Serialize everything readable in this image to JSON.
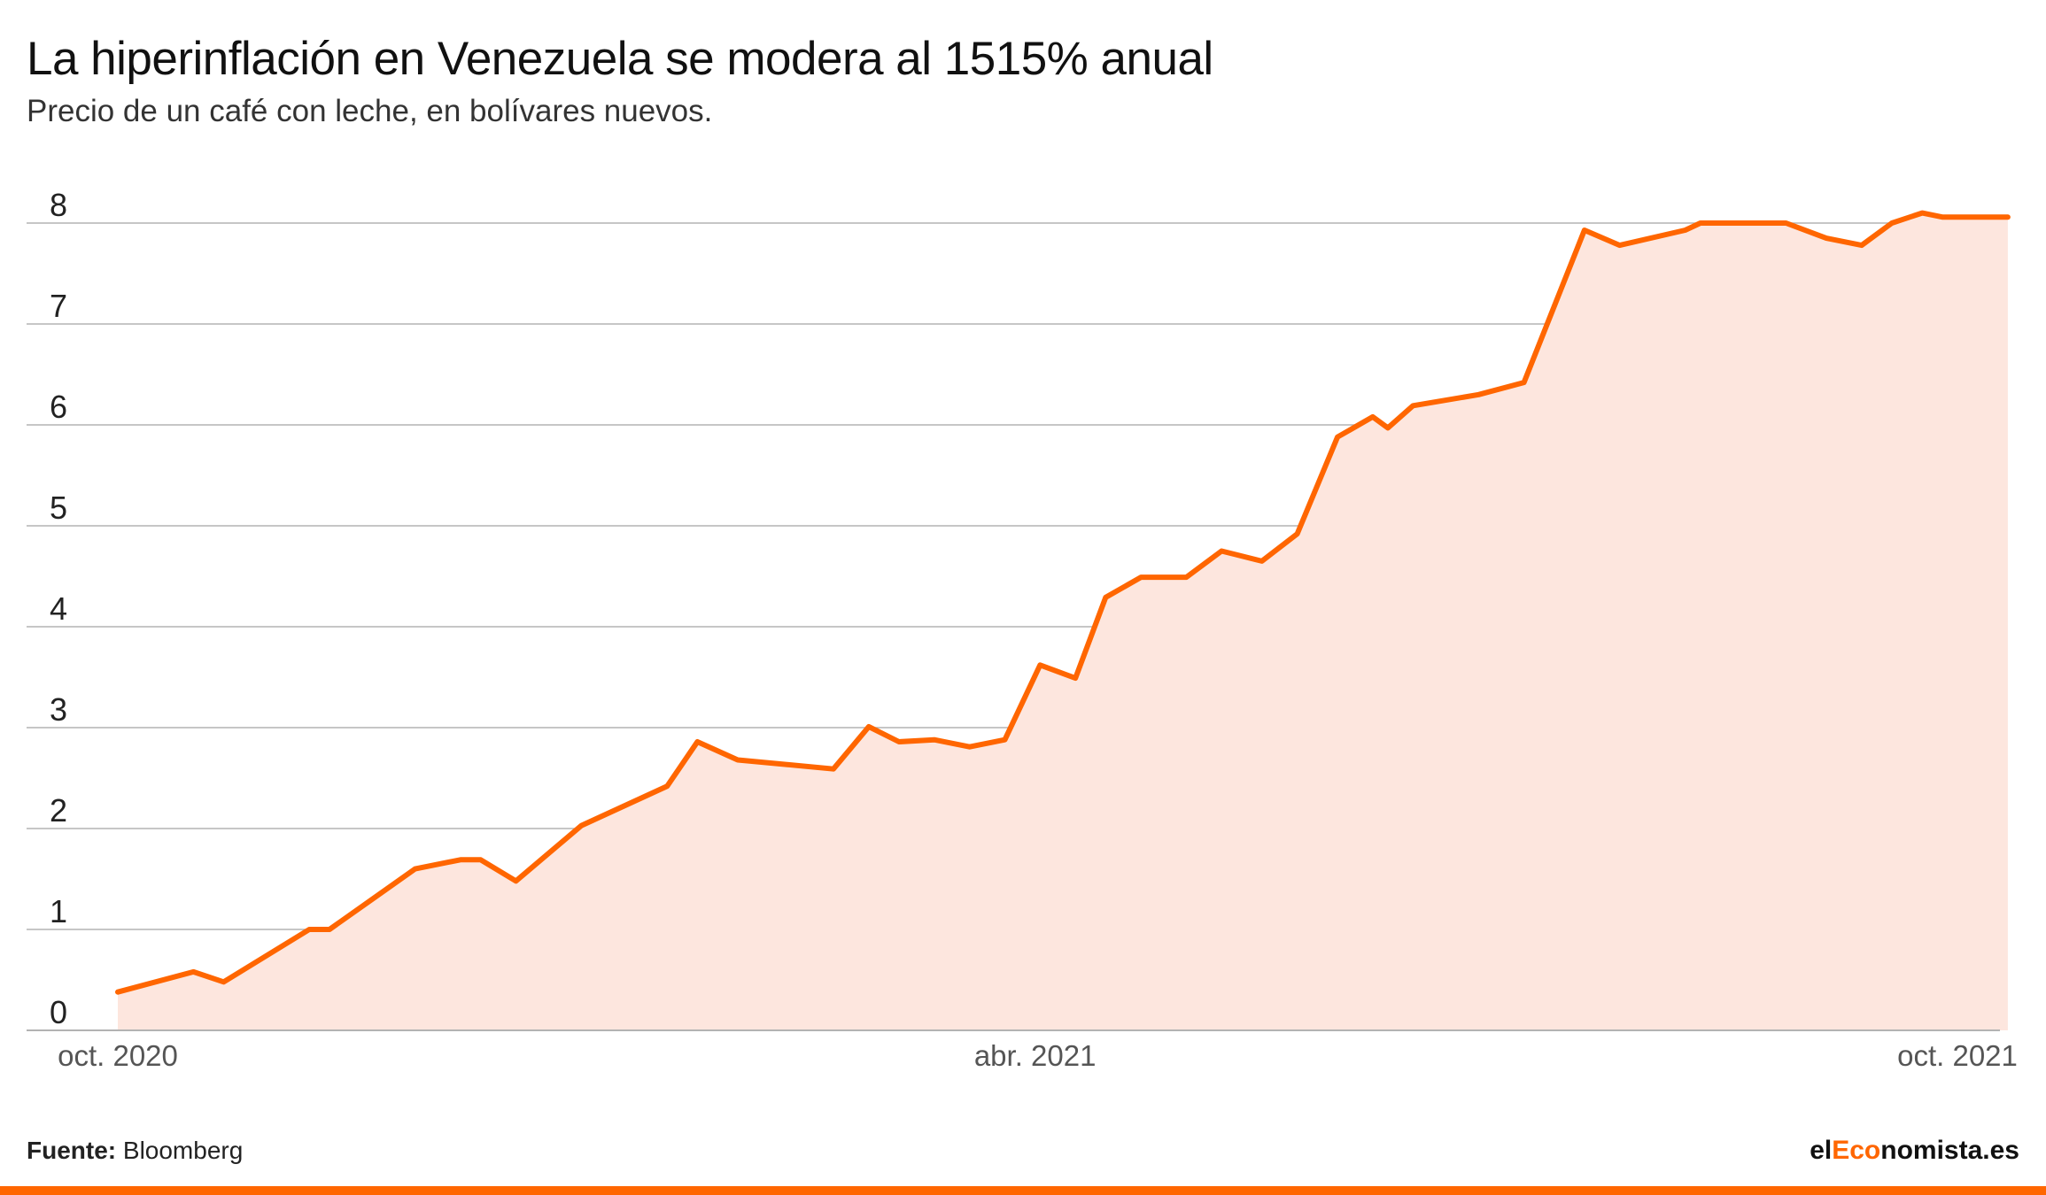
{
  "header": {
    "title": "La hiperinflación en Venezuela se modera al 1515% anual",
    "subtitle": "Precio de un café con leche, en bolívares nuevos."
  },
  "footer": {
    "source_label": "Fuente:",
    "source_value": "Bloomberg",
    "brand_prefix": "el",
    "brand_accent": "Eco",
    "brand_suffix": "nomista.es"
  },
  "colors": {
    "line": "#ff6600",
    "area": "#fde6de",
    "grid": "#b3b3b3",
    "accent": "#ff6600"
  },
  "chart_data": {
    "type": "area",
    "title": "La hiperinflación en Venezuela se modera al 1515% anual",
    "subtitle": "Precio de un café con leche, en bolívares nuevos.",
    "xlabel": "",
    "ylabel": "",
    "ylim": [
      0,
      8
    ],
    "yticks": [
      0,
      1,
      2,
      3,
      4,
      5,
      6,
      7,
      8
    ],
    "xtick_labels": [
      {
        "label": "oct. 2020",
        "date": "2020-10-01"
      },
      {
        "label": "abr. 2021",
        "date": "2021-04-01"
      },
      {
        "label": "oct. 2021",
        "date": "2021-10-01"
      }
    ],
    "grid": true,
    "legend": "none",
    "series": [
      {
        "x": [
          "2020-10-01",
          "2020-10-16",
          "2020-10-22",
          "2020-11-08",
          "2020-11-12",
          "2020-11-29",
          "2020-12-08",
          "2020-12-12",
          "2020-12-19",
          "2021-01-01",
          "2021-01-18",
          "2021-01-24",
          "2021-02-01",
          "2021-02-20",
          "2021-02-27",
          "2021-03-05",
          "2021-03-12",
          "2021-03-19",
          "2021-03-26",
          "2021-04-02",
          "2021-04-09",
          "2021-04-15",
          "2021-04-22",
          "2021-05-01",
          "2021-05-08",
          "2021-05-16",
          "2021-05-23",
          "2021-05-31",
          "2021-06-07",
          "2021-06-10",
          "2021-06-15",
          "2021-06-28",
          "2021-07-07",
          "2021-07-19",
          "2021-07-26",
          "2021-08-08",
          "2021-08-11",
          "2021-08-17",
          "2021-08-28",
          "2021-09-05",
          "2021-09-12",
          "2021-09-18",
          "2021-09-24",
          "2021-09-28",
          "2021-10-05",
          "2021-10-11"
        ],
        "values": [
          0.38,
          0.58,
          0.48,
          1.0,
          1.0,
          1.6,
          1.69,
          1.69,
          1.48,
          2.03,
          2.42,
          2.86,
          2.68,
          2.59,
          3.01,
          2.86,
          2.88,
          2.81,
          2.88,
          3.62,
          3.49,
          4.29,
          4.49,
          4.49,
          4.75,
          4.65,
          4.92,
          5.88,
          6.08,
          5.97,
          6.19,
          6.3,
          6.42,
          7.93,
          7.78,
          7.93,
          8.0,
          8.0,
          8.0,
          7.85,
          7.78,
          8.0,
          8.1,
          8.06,
          8.06,
          8.06
        ]
      }
    ]
  }
}
